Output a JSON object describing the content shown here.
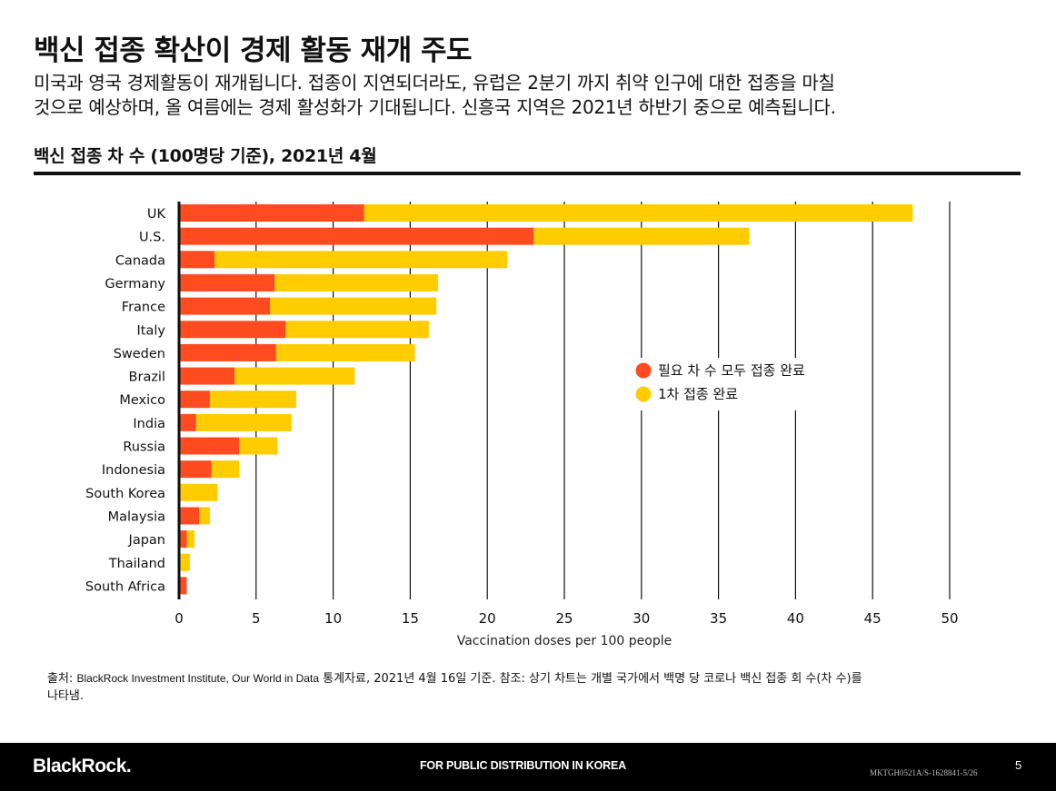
{
  "header": {
    "title": "백신 접종 확산이 경제 활동 재개 주도",
    "subtitle_lines": [
      "미국과 영국 경제활동이 재개됩니다. 접종이 지연되더라도, 유럽은 2분기 까지 취약 인구에 대한 접종을 마칠",
      "것으로 예상하며, 올 여름에는 경제 활성화가 기대됩니다. 신흥국 지역은 2021년 하반기 중으로 예측됩니다."
    ],
    "chart_title": "백신 접종 차 수 (100명당 기준), 2021년 4월"
  },
  "chart_data": {
    "type": "bar",
    "orientation": "horizontal",
    "stacked": true,
    "categories": [
      "UK",
      "U.S.",
      "Canada",
      "Germany",
      "France",
      "Italy",
      "Sweden",
      "Brazil",
      "Mexico",
      "India",
      "Russia",
      "Indonesia",
      "South Korea",
      "Malaysia",
      "Japan",
      "Thailand",
      "South Africa"
    ],
    "series": [
      {
        "name": "필요 차 수 모두 접종 완료",
        "color": "#ff4b1f",
        "values": [
          12.0,
          23.0,
          2.3,
          6.2,
          5.9,
          6.9,
          6.3,
          3.6,
          2.0,
          1.1,
          3.9,
          2.1,
          0.0,
          1.3,
          0.5,
          0.0,
          0.5
        ]
      },
      {
        "name": "1차 접종 완료",
        "color": "#ffcc00",
        "values": [
          35.6,
          14.0,
          19.0,
          10.6,
          10.8,
          9.3,
          9.0,
          7.8,
          5.6,
          6.2,
          2.5,
          1.8,
          2.5,
          0.7,
          0.5,
          0.7,
          0.0
        ]
      }
    ],
    "xlim": [
      0,
      50
    ],
    "xticks": [
      0,
      5,
      10,
      15,
      20,
      25,
      30,
      35,
      40,
      45,
      50
    ],
    "xlabel": "Vaccination doses per 100 people",
    "ylabel": "",
    "grid": "vertical",
    "legend": [
      "필요 차 수 모두 접종 완료",
      "1차 접종 완료"
    ],
    "legend_position": "center-right"
  },
  "footnote": {
    "prefix": "출처: ",
    "source": "BlackRock Investment Institute, Our World in Data",
    "line1_rest": " 통계자료, 2021년 4월 16일 기준. 참조: 상기 차트는 개별 국가에서 백명 당 코로나 백신 접종 회 수(차 수)를",
    "line2": "나타냄."
  },
  "footer": {
    "logo": "BlackRock.",
    "distribution": "FOR PUBLIC DISTRIBUTION IN KOREA",
    "code": "MKTGH0521A/S-1628841-5/26",
    "page": "5"
  }
}
